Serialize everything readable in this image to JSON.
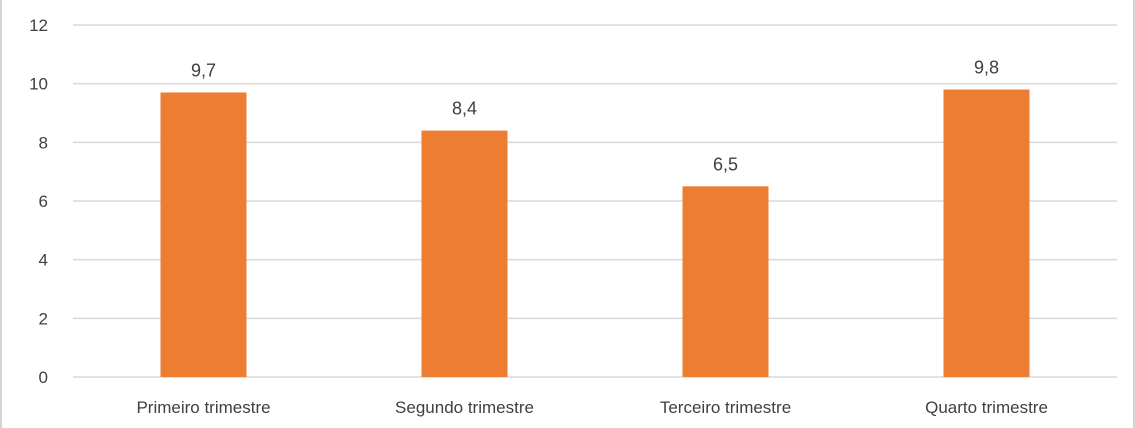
{
  "chart_data": {
    "type": "bar",
    "categories": [
      "Primeiro trimestre",
      "Segundo trimestre",
      "Terceiro trimestre",
      "Quarto trimestre"
    ],
    "values": [
      9.7,
      8.4,
      6.5,
      9.8
    ],
    "data_labels": [
      "9,7",
      "8,4",
      "6,5",
      "9,8"
    ],
    "ylim": [
      0,
      12
    ],
    "yticks": [
      0,
      2,
      4,
      6,
      8,
      10,
      12
    ],
    "grid": true,
    "legend": "none",
    "bar_color": "#ed7d31",
    "title": "",
    "xlabel": "",
    "ylabel": ""
  }
}
